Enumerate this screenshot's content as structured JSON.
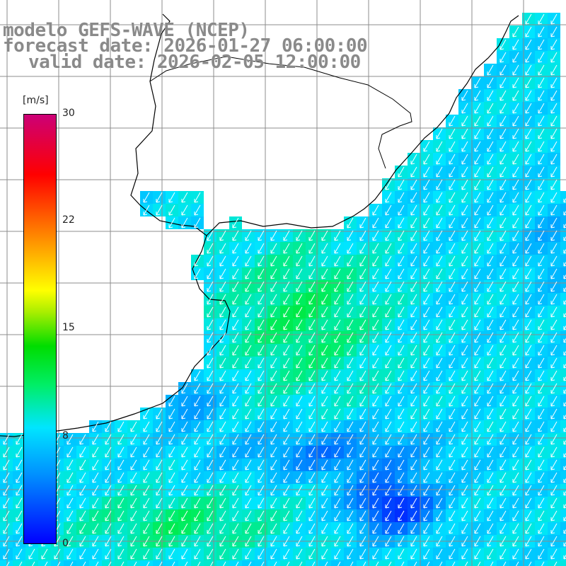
{
  "title": {
    "line1": "modelo GEFS-WAVE (NCEP)",
    "line2": "forecast date: 2026-01-27 06:00:00",
    "line3": "valid date: 2026-02-05 12:00:00"
  },
  "colorbar": {
    "unit": "[m/s]",
    "ticks": [
      "30",
      "22",
      "15",
      "8",
      "0"
    ],
    "tick_values": [
      30,
      22,
      15,
      8,
      0
    ],
    "min": 0,
    "max": 30,
    "colors": [
      "#0000ff",
      "#0090ff",
      "#00e5ff",
      "#00ee66",
      "#00dd00",
      "#aaee00",
      "#ffff00",
      "#ffaa00",
      "#ff5500",
      "#ff0000",
      "#cc0077"
    ]
  },
  "map": {
    "land_color": "#ffffff",
    "coast_color": "#000000",
    "grid_color": "#8c8c8c",
    "arrow_color": "#ffffff",
    "arrow_direction": "southwest"
  }
}
